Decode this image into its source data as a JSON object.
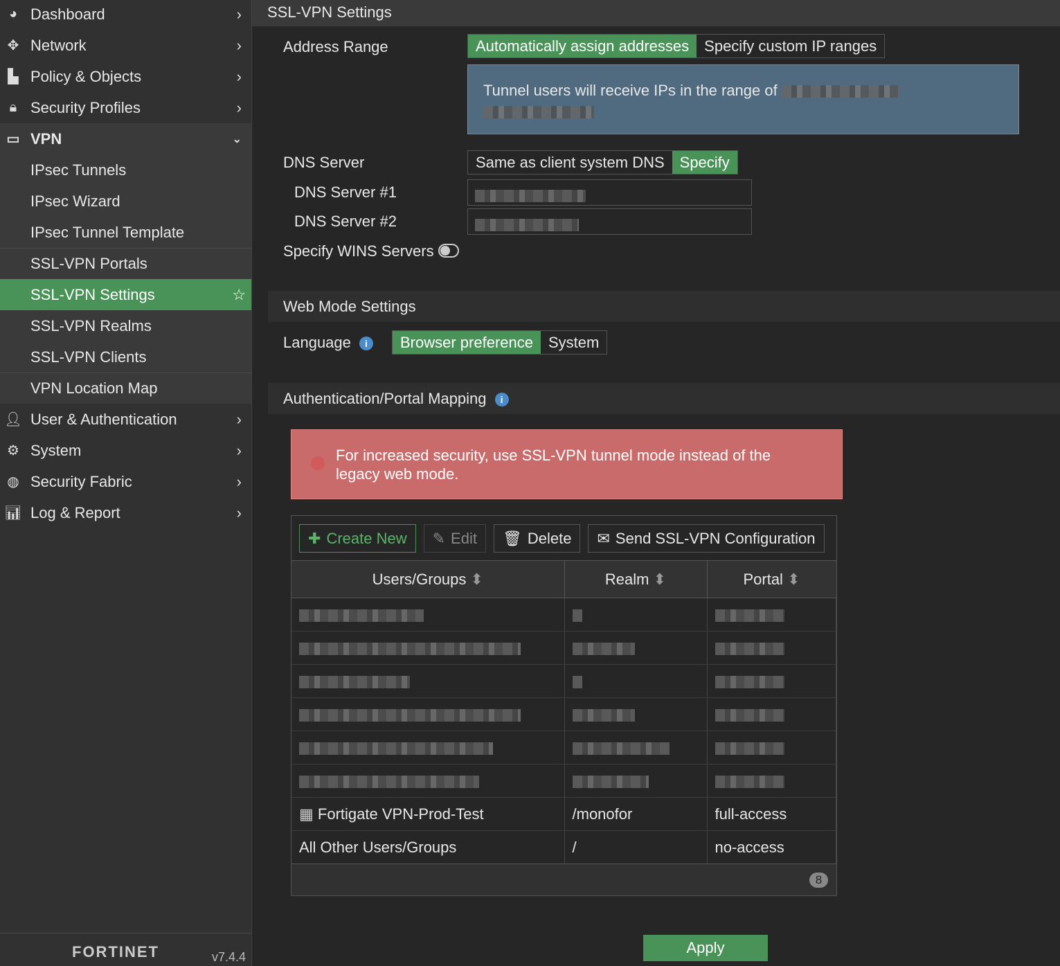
{
  "sidebar": {
    "items": [
      {
        "label": "Dashboard",
        "icon": "dashboard-icon"
      },
      {
        "label": "Network",
        "icon": "network-icon"
      },
      {
        "label": "Policy & Objects",
        "icon": "policy-icon"
      },
      {
        "label": "Security Profiles",
        "icon": "lock-icon"
      },
      {
        "label": "VPN",
        "icon": "laptop-icon"
      }
    ],
    "vpn_sub": [
      "IPsec Tunnels",
      "IPsec Wizard",
      "IPsec Tunnel Template",
      "SSL-VPN Portals",
      "SSL-VPN Settings",
      "SSL-VPN Realms",
      "SSL-VPN Clients",
      "VPN Location Map"
    ],
    "items_after": [
      {
        "label": "User & Authentication",
        "icon": "user-icon"
      },
      {
        "label": "System",
        "icon": "gear-icon"
      },
      {
        "label": "Security Fabric",
        "icon": "fabric-icon"
      },
      {
        "label": "Log & Report",
        "icon": "chart-icon"
      }
    ],
    "logo": "FORTINET",
    "version": "v7.4.4"
  },
  "header": {
    "title": "SSL-VPN Settings"
  },
  "address_range": {
    "label": "Address Range",
    "options": [
      "Automatically assign addresses",
      "Specify custom IP ranges"
    ],
    "selected": "Automatically assign addresses",
    "info": "Tunnel users will receive IPs in the range of"
  },
  "dns": {
    "label": "DNS Server",
    "options": [
      "Same as client system DNS",
      "Specify"
    ],
    "selected": "Specify",
    "server1_label": "DNS Server #1",
    "server2_label": "DNS Server #2"
  },
  "wins": {
    "label": "Specify WINS Servers",
    "enabled": false
  },
  "web_mode": {
    "title": "Web Mode Settings",
    "language_label": "Language",
    "options": [
      "Browser preference",
      "System"
    ],
    "selected": "Browser preference"
  },
  "auth": {
    "title": "Authentication/Portal Mapping",
    "alert": "For increased security, use SSL-VPN tunnel mode instead of the legacy web mode.",
    "toolbar": {
      "create": "Create New",
      "edit": "Edit",
      "delete": "Delete",
      "send": "Send SSL-VPN Configuration"
    },
    "columns": [
      "Users/Groups",
      "Realm",
      "Portal"
    ],
    "rows": [
      {
        "users": "Fortigate VPN-Prod-Test",
        "realm": "/monofor",
        "portal": "full-access"
      },
      {
        "users": "All Other Users/Groups",
        "realm": "/",
        "portal": "no-access"
      }
    ],
    "count": "8"
  },
  "apply": "Apply",
  "colors": {
    "accent": "#4a9358",
    "info": "#506a80",
    "alert": "#c96b6b"
  }
}
